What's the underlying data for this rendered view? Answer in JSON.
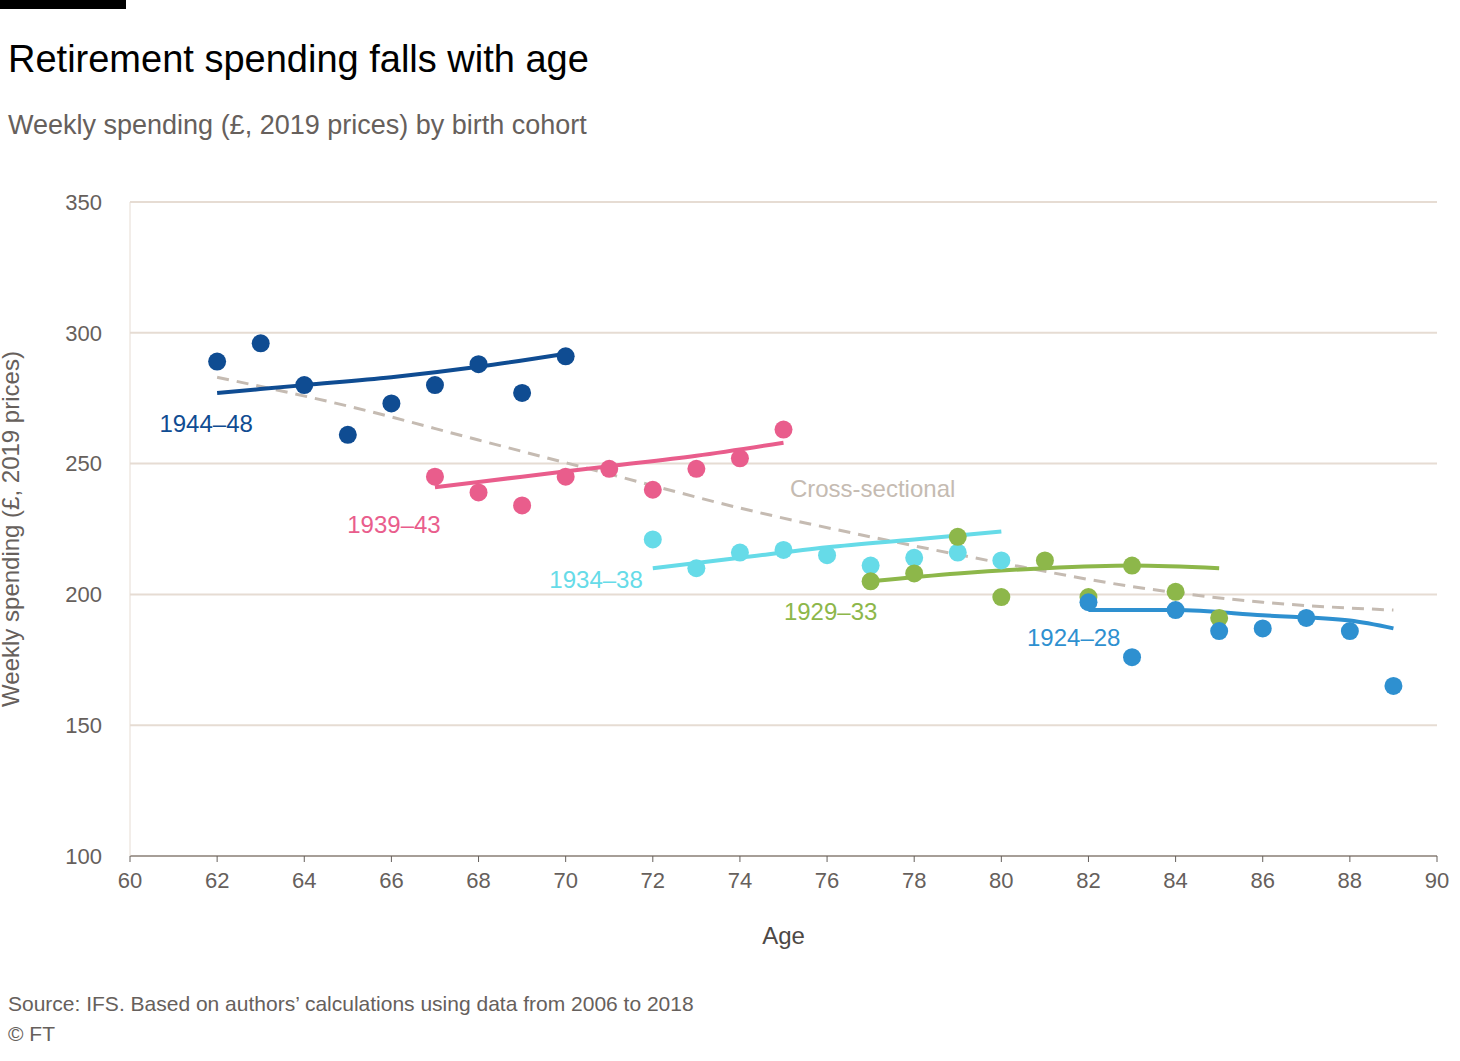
{
  "chart_data": {
    "type": "scatter",
    "title": "Retirement spending falls with age",
    "subtitle": "Weekly spending (£, 2019 prices) by birth cohort",
    "x_label": "Age",
    "y_label": "Weekly spending (£, 2019 prices)",
    "source": "Source: IFS. Based on authors’ calculations using data from 2006 to 2018",
    "credit": "© FT",
    "xlim": [
      60,
      90
    ],
    "xticks": [
      60,
      62,
      64,
      66,
      68,
      70,
      72,
      74,
      76,
      78,
      80,
      82,
      84,
      86,
      88,
      90
    ],
    "ylim": [
      100,
      350
    ],
    "yticks": [
      100,
      150,
      200,
      250,
      300,
      350
    ],
    "grid": true,
    "series": [
      {
        "name": "Cross-sectional",
        "type": "line",
        "line_style": "dashed",
        "color": "#c5bbb2",
        "x": [
          62,
          65,
          68,
          71,
          74,
          77,
          80,
          83,
          86,
          89
        ],
        "values": [
          283,
          272,
          259,
          246,
          233,
          222,
          212,
          203,
          197,
          194
        ]
      },
      {
        "name": "1944–48",
        "type": "scatter",
        "marker": "circle",
        "color": "#0f4c92",
        "x": [
          62,
          63,
          64,
          65,
          66,
          67,
          68,
          69,
          70
        ],
        "values": [
          289,
          296,
          280,
          261,
          273,
          280,
          288,
          277,
          291
        ],
        "fit": {
          "x": [
            62,
            64,
            66,
            68,
            70
          ],
          "values": [
            277,
            280,
            283,
            287,
            292
          ]
        }
      },
      {
        "name": "1939–43",
        "type": "scatter",
        "marker": "circle",
        "color": "#e95d8c",
        "x": [
          67,
          68,
          69,
          70,
          71,
          72,
          73,
          74,
          75
        ],
        "values": [
          245,
          239,
          234,
          245,
          248,
          240,
          248,
          252,
          263
        ],
        "fit": {
          "x": [
            67,
            69,
            71,
            73,
            75
          ],
          "values": [
            241,
            245,
            249,
            253,
            258
          ]
        }
      },
      {
        "name": "1934–38",
        "type": "scatter",
        "marker": "circle",
        "color": "#66dbe8",
        "x": [
          72,
          73,
          74,
          75,
          76,
          77,
          78,
          79,
          80
        ],
        "values": [
          221,
          210,
          216,
          217,
          215,
          211,
          214,
          216,
          213
        ],
        "fit": {
          "x": [
            72,
            74,
            76,
            78,
            80
          ],
          "values": [
            210,
            214,
            218,
            221,
            224
          ]
        }
      },
      {
        "name": "1929–33",
        "type": "scatter",
        "marker": "circle",
        "color": "#8db74a",
        "x": [
          77,
          78,
          79,
          80,
          81,
          82,
          83,
          84,
          85
        ],
        "values": [
          205,
          208,
          222,
          199,
          213,
          199,
          211,
          201,
          191
        ],
        "fit": {
          "x": [
            77,
            79,
            81,
            83,
            85
          ],
          "values": [
            205,
            208,
            210,
            211,
            210
          ]
        }
      },
      {
        "name": "1924–28",
        "type": "scatter",
        "marker": "circle",
        "color": "#2e90d0",
        "x": [
          82,
          83,
          84,
          85,
          86,
          87,
          88,
          89
        ],
        "values": [
          197,
          176,
          194,
          186,
          187,
          191,
          186,
          165
        ],
        "fit": {
          "x": [
            82,
            84,
            86,
            88,
            89
          ],
          "values": [
            194,
            194,
            192,
            190,
            187
          ]
        }
      }
    ]
  }
}
